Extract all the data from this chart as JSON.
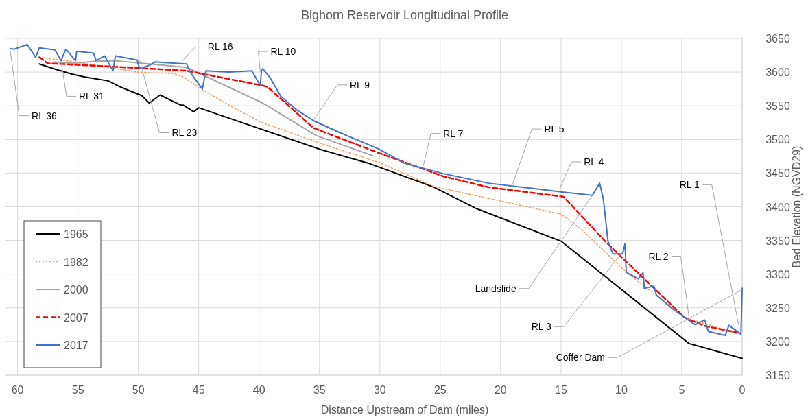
{
  "chart_data": {
    "type": "line",
    "title": "Bighorn Reservoir Longitudinal Profile",
    "xlabel": "Distance Upstream of Dam (miles)",
    "ylabel": "Bed Elevation (NGVD29)",
    "xlim": [
      61,
      0
    ],
    "xticks": [
      60,
      55,
      50,
      45,
      40,
      35,
      30,
      25,
      20,
      15,
      10,
      5,
      0
    ],
    "ylim": [
      3150,
      3650
    ],
    "yticks": [
      3150,
      3200,
      3250,
      3300,
      3350,
      3400,
      3450,
      3500,
      3550,
      3600,
      3650
    ],
    "grid": true,
    "legend": "bottom left",
    "series": [
      {
        "name": "1965",
        "color": "#000000",
        "line_style": "solid",
        "x": [
          58.2,
          57,
          55.5,
          54.5,
          52.5,
          51.5,
          49.7,
          49.1,
          48.2,
          46.5,
          46.3,
          45.4,
          45,
          34.9,
          31,
          25.5,
          22.1,
          15,
          4.4,
          0
        ],
        "values": [
          3612,
          3605,
          3597,
          3593,
          3587,
          3578,
          3565,
          3554,
          3566,
          3551,
          3551,
          3541,
          3547,
          3485,
          3465,
          3429,
          3398,
          3349,
          3197,
          3175
        ]
      },
      {
        "name": "1982",
        "color": "#f4a261",
        "line_style": "dotted",
        "x": [
          58.2,
          55.2,
          50.1,
          49.1,
          47.1,
          46.3,
          44.8,
          42.5,
          39.9,
          35.2,
          30.1,
          25.5,
          16,
          15,
          13.4,
          9.6,
          4.8,
          0.5
        ],
        "values": [
          3622,
          3615,
          3600,
          3599,
          3598,
          3593,
          3575,
          3551,
          3526,
          3496,
          3466,
          3430,
          3393,
          3389,
          3368,
          3303,
          3236,
          3212
        ]
      },
      {
        "name": "2000",
        "color": "#a5a5a5",
        "line_style": "solid",
        "x": [
          57,
          55.2,
          53.7,
          52,
          46,
          39.7,
          35.3,
          30.6
        ],
        "values": [
          3615,
          3613,
          3616,
          3617,
          3607,
          3554,
          3506,
          3476
        ]
      },
      {
        "name": "2007",
        "color": "#ff0000",
        "line_style": "dashed",
        "x": [
          58.2,
          57.5,
          52,
          46,
          39.7,
          39.3,
          35.5,
          30.1,
          24.7,
          21,
          14.8,
          11.3,
          4.8,
          3.1,
          0.3
        ],
        "values": [
          3622,
          3613,
          3608,
          3602,
          3580,
          3578,
          3517,
          3480,
          3445,
          3429,
          3415,
          3348,
          3236,
          3223,
          3213
        ]
      },
      {
        "name": "2017",
        "color": "#4472c4",
        "line_style": "solid",
        "x": [
          60.6,
          60.3,
          59.2,
          58.5,
          58.2,
          56.9,
          56.4,
          56,
          55.2,
          55.1,
          53.7,
          53.5,
          52.8,
          52.1,
          51.9,
          50.1,
          49.9,
          49.1,
          48.6,
          46,
          45.7,
          45.4,
          44.7,
          44.4,
          42.5,
          40.6,
          39.9,
          39.8,
          39.7,
          39.1,
          38.2,
          36.9,
          35.4,
          33.3,
          30.1,
          28,
          24.7,
          21,
          17.2,
          14.9,
          12.4,
          11.8,
          11.5,
          11.1,
          10.7,
          9.9,
          9.7,
          9.6,
          8.6,
          8.2,
          8.1,
          7.3,
          7.1,
          5.8,
          4.8,
          3.9,
          3.1,
          2.8,
          1.4,
          1.1,
          0.1,
          0
        ],
        "values": [
          3635,
          3634,
          3641,
          3622,
          3636,
          3633,
          3617,
          3634,
          3617,
          3631,
          3628,
          3617,
          3624,
          3602,
          3624,
          3618,
          3605,
          3610,
          3615,
          3612,
          3600,
          3592,
          3575,
          3602,
          3600,
          3602,
          3580,
          3603,
          3605,
          3592,
          3564,
          3544,
          3527,
          3510,
          3486,
          3465,
          3449,
          3435,
          3427,
          3422,
          3417,
          3435,
          3412,
          3348,
          3330,
          3330,
          3345,
          3303,
          3293,
          3302,
          3279,
          3282,
          3269,
          3249,
          3236,
          3225,
          3232,
          3215,
          3209,
          3224,
          3211,
          3279
        ]
      }
    ],
    "annotations": [
      {
        "text": "RL 36",
        "x": 60.6,
        "y": 3631
      },
      {
        "text": "RL 31",
        "x": 56.4,
        "y": 3617
      },
      {
        "text": "RL 23",
        "x": 49.9,
        "y": 3618
      },
      {
        "text": "RL 16",
        "x": 46.3,
        "y": 3618
      },
      {
        "text": "RL 10",
        "x": 39.9,
        "y": 3600
      },
      {
        "text": "RL 9",
        "x": 35.5,
        "y": 3529
      },
      {
        "text": "RL 7",
        "x": 26.4,
        "y": 3461
      },
      {
        "text": "RL 5",
        "x": 19,
        "y": 3434
      },
      {
        "text": "RL 4",
        "x": 15.1,
        "y": 3427
      },
      {
        "text": "Landslide",
        "x": 12.4,
        "y": 3417
      },
      {
        "text": "RL 3",
        "x": 9.9,
        "y": 3333
      },
      {
        "text": "RL 2",
        "x": 4.4,
        "y": 3236
      },
      {
        "text": "RL 1",
        "x": 0.3,
        "y": 3225
      },
      {
        "text": "Coffer Dam",
        "x": 0,
        "y": 3277
      }
    ]
  }
}
